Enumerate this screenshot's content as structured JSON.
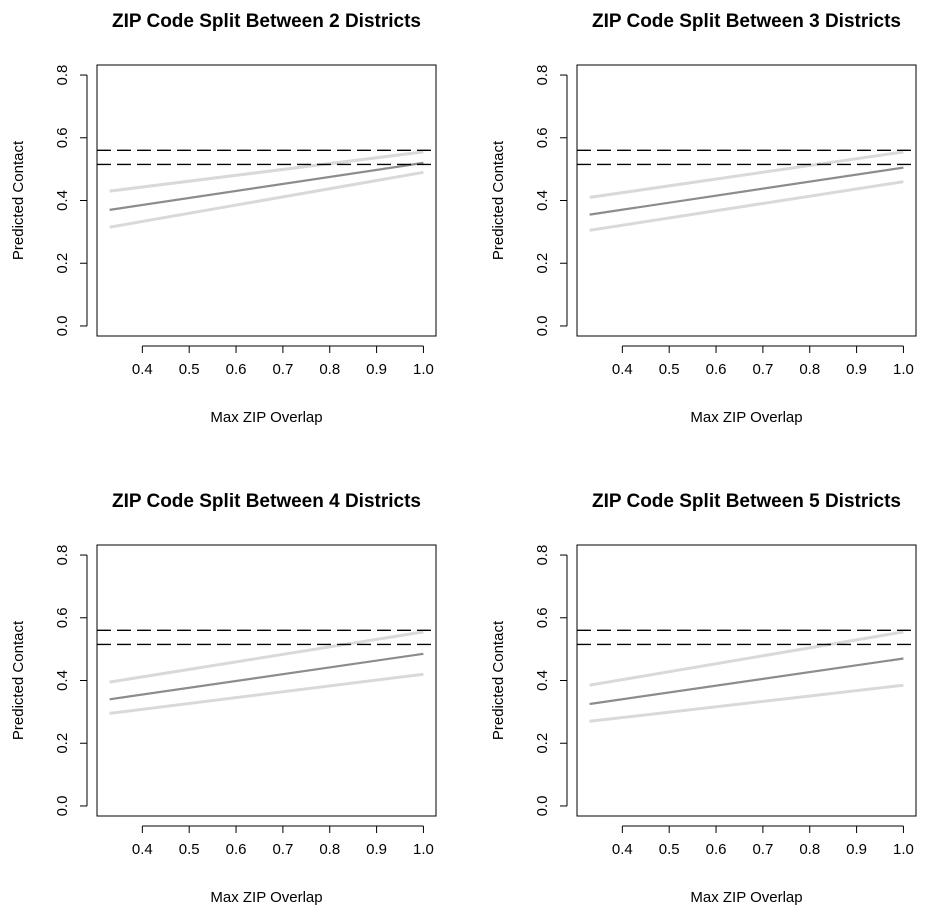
{
  "chart_data": [
    {
      "type": "line",
      "title": "ZIP Code Split Between 2 Districts",
      "xlabel": "Max ZIP Overlap",
      "ylabel": "Predicted Contact",
      "xlim": [
        0.33,
        1.0
      ],
      "ylim": [
        0.0,
        0.8
      ],
      "xticks": [
        "0.4",
        "0.5",
        "0.6",
        "0.7",
        "0.8",
        "0.9",
        "1.0"
      ],
      "yticks": [
        "0.0",
        "0.2",
        "0.4",
        "0.6",
        "0.8"
      ],
      "reference_lines": [
        0.56,
        0.515
      ],
      "series": [
        {
          "role": "upper",
          "x": [
            0.33,
            1.0
          ],
          "values": [
            0.43,
            0.555
          ]
        },
        {
          "role": "estimate",
          "x": [
            0.33,
            1.0
          ],
          "values": [
            0.37,
            0.52
          ]
        },
        {
          "role": "lower",
          "x": [
            0.33,
            1.0
          ],
          "values": [
            0.315,
            0.49
          ]
        }
      ]
    },
    {
      "type": "line",
      "title": "ZIP Code Split Between 3 Districts",
      "xlabel": "Max ZIP Overlap",
      "ylabel": "Predicted Contact",
      "xlim": [
        0.33,
        1.0
      ],
      "ylim": [
        0.0,
        0.8
      ],
      "xticks": [
        "0.4",
        "0.5",
        "0.6",
        "0.7",
        "0.8",
        "0.9",
        "1.0"
      ],
      "yticks": [
        "0.0",
        "0.2",
        "0.4",
        "0.6",
        "0.8"
      ],
      "reference_lines": [
        0.56,
        0.515
      ],
      "series": [
        {
          "role": "upper",
          "x": [
            0.33,
            1.0
          ],
          "values": [
            0.41,
            0.555
          ]
        },
        {
          "role": "estimate",
          "x": [
            0.33,
            1.0
          ],
          "values": [
            0.355,
            0.505
          ]
        },
        {
          "role": "lower",
          "x": [
            0.33,
            1.0
          ],
          "values": [
            0.305,
            0.46
          ]
        }
      ]
    },
    {
      "type": "line",
      "title": "ZIP Code Split Between 4 Districts",
      "xlabel": "Max ZIP Overlap",
      "ylabel": "Predicted Contact",
      "xlim": [
        0.33,
        1.0
      ],
      "ylim": [
        0.0,
        0.8
      ],
      "xticks": [
        "0.4",
        "0.5",
        "0.6",
        "0.7",
        "0.8",
        "0.9",
        "1.0"
      ],
      "yticks": [
        "0.0",
        "0.2",
        "0.4",
        "0.6",
        "0.8"
      ],
      "reference_lines": [
        0.56,
        0.515
      ],
      "series": [
        {
          "role": "upper",
          "x": [
            0.33,
            1.0
          ],
          "values": [
            0.395,
            0.555
          ]
        },
        {
          "role": "estimate",
          "x": [
            0.33,
            1.0
          ],
          "values": [
            0.34,
            0.485
          ]
        },
        {
          "role": "lower",
          "x": [
            0.33,
            1.0
          ],
          "values": [
            0.295,
            0.42
          ]
        }
      ]
    },
    {
      "type": "line",
      "title": "ZIP Code Split Between 5 Districts",
      "xlabel": "Max ZIP Overlap",
      "ylabel": "Predicted Contact",
      "xlim": [
        0.33,
        1.0
      ],
      "ylim": [
        0.0,
        0.8
      ],
      "xticks": [
        "0.4",
        "0.5",
        "0.6",
        "0.7",
        "0.8",
        "0.9",
        "1.0"
      ],
      "yticks": [
        "0.0",
        "0.2",
        "0.4",
        "0.6",
        "0.8"
      ],
      "reference_lines": [
        0.56,
        0.515
      ],
      "series": [
        {
          "role": "upper",
          "x": [
            0.33,
            1.0
          ],
          "values": [
            0.385,
            0.555
          ]
        },
        {
          "role": "estimate",
          "x": [
            0.33,
            1.0
          ],
          "values": [
            0.325,
            0.47
          ]
        },
        {
          "role": "lower",
          "x": [
            0.33,
            1.0
          ],
          "values": [
            0.27,
            0.385
          ]
        }
      ]
    }
  ]
}
